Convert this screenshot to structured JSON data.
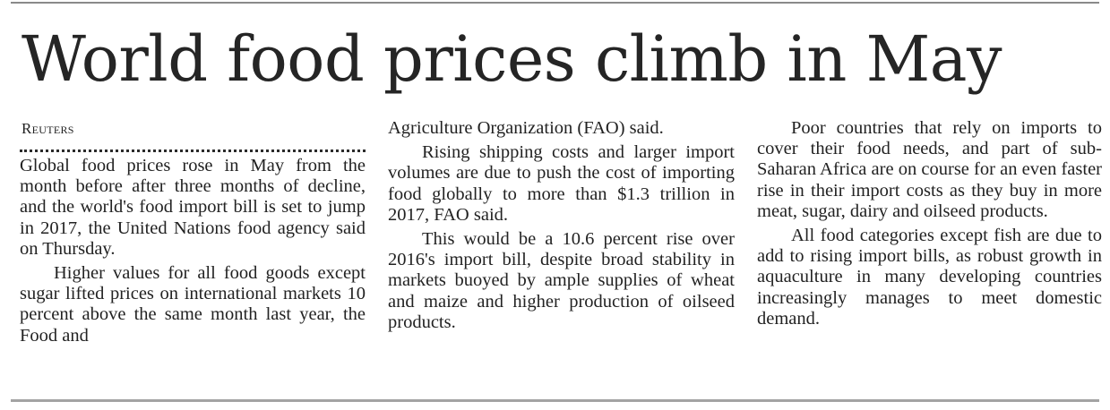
{
  "article": {
    "headline": "World food prices climb in May",
    "byline": "Reuters",
    "columns": [
      {
        "paragraphs": [
          "Global food prices rose in May from the month before after three months of decline, and the world's food import bill is set to jump in 2017, the United Nations food agency said on Thursday.",
          "Higher values for all food goods except sugar lifted prices on international markets 10 percent above the same month last year, the Food and"
        ]
      },
      {
        "paragraphs": [
          "Agriculture Organization (FAO) said.",
          "Rising shipping costs and larger import volumes are due to push the cost of importing food globally to more than $1.3 trillion in 2017, FAO said.",
          "This would be a 10.6 percent rise over 2016's import bill, despite broad stability in markets buoyed by ample supplies of wheat and maize and higher production of oilseed products."
        ]
      },
      {
        "paragraphs": [
          "Poor countries that rely on imports to cover their food needs, and part of sub-Saharan Africa are on course for an even faster rise in their import costs as they buy in more meat, sugar, dairy and oilseed products.",
          "All food categories except fish are due to add to rising import bills, as robust growth in aquaculture in many developing countries increasingly manages to meet domestic demand."
        ]
      }
    ]
  }
}
